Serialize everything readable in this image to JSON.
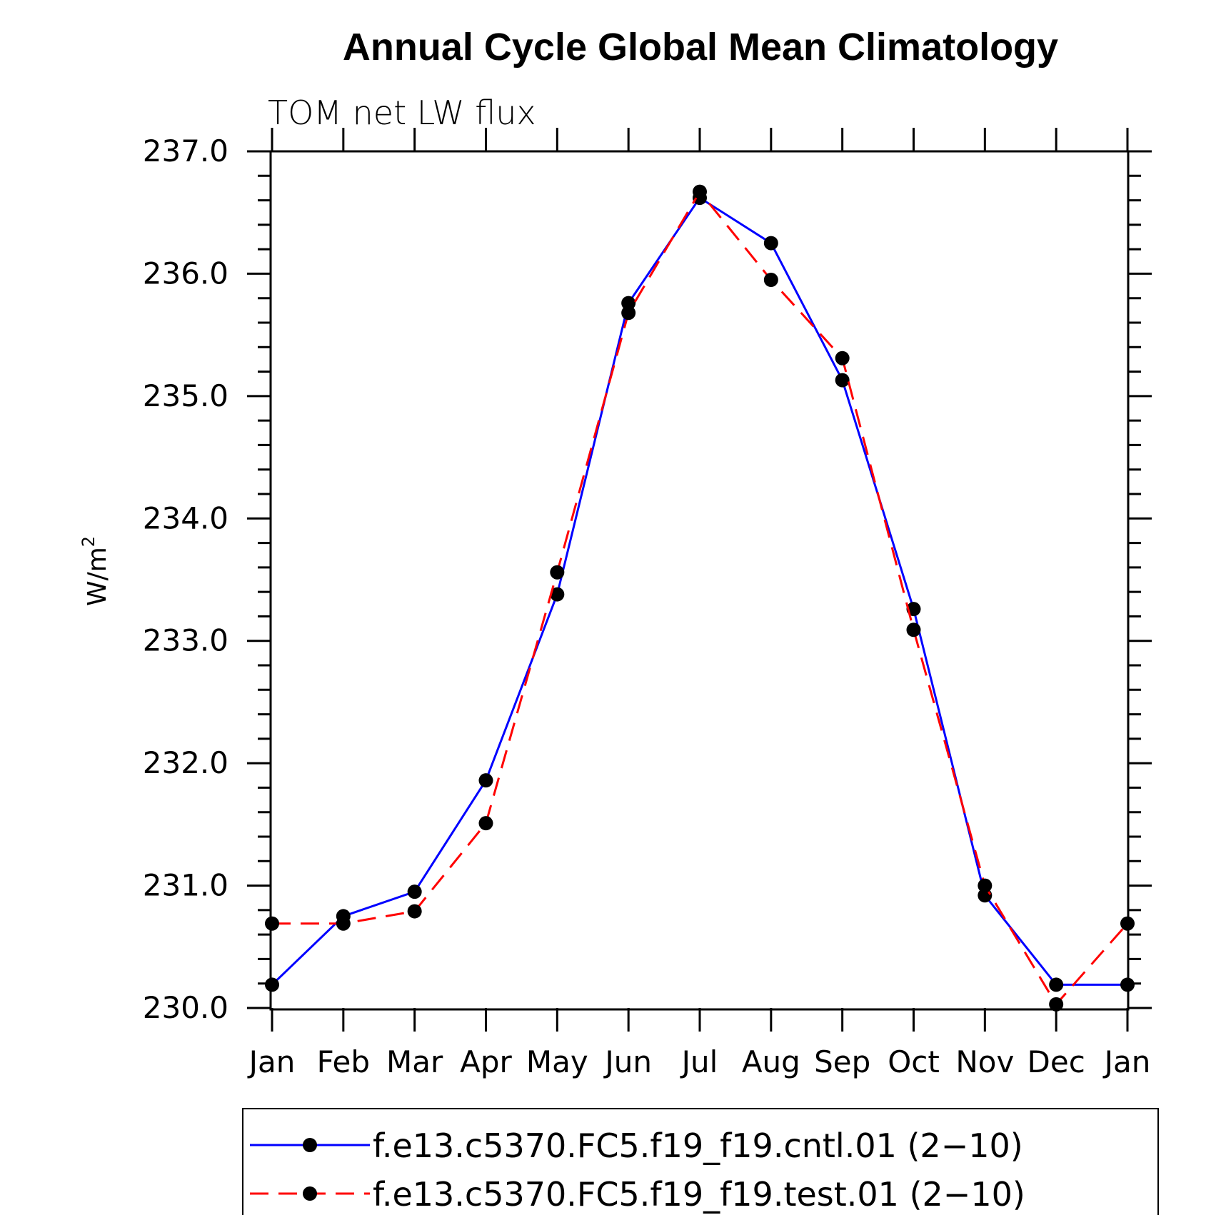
{
  "chart_data": {
    "type": "line",
    "title": "Annual Cycle Global Mean Climatology",
    "subtitle": "TOM net LW flux",
    "ylabel": "W/m",
    "ylabel_sup": "2",
    "ylim": [
      230.0,
      237.0
    ],
    "yticks": [
      "230.0",
      "231.0",
      "232.0",
      "233.0",
      "234.0",
      "235.0",
      "236.0",
      "237.0"
    ],
    "categories": [
      "Jan",
      "Feb",
      "Mar",
      "Apr",
      "May",
      "Jun",
      "Jul",
      "Aug",
      "Sep",
      "Oct",
      "Nov",
      "Dec",
      "Jan"
    ],
    "series": [
      {
        "name": "f.e13.c5370.FC5.f19_f19.cntl.01 (2−10)",
        "color": "#0000ff",
        "dash": "solid",
        "values": [
          230.19,
          230.75,
          230.95,
          231.86,
          233.38,
          235.76,
          236.62,
          236.25,
          235.13,
          233.26,
          230.92,
          230.19,
          230.19
        ]
      },
      {
        "name": "f.e13.c5370.FC5.f19_f19.test.01 (2−10)",
        "color": "#ff0000",
        "dash": "dashed",
        "values": [
          230.69,
          230.69,
          230.79,
          231.51,
          233.56,
          235.68,
          236.67,
          235.95,
          235.31,
          233.09,
          231.0,
          230.03,
          230.69
        ]
      }
    ],
    "legend_position": "bottom",
    "grid": false
  }
}
